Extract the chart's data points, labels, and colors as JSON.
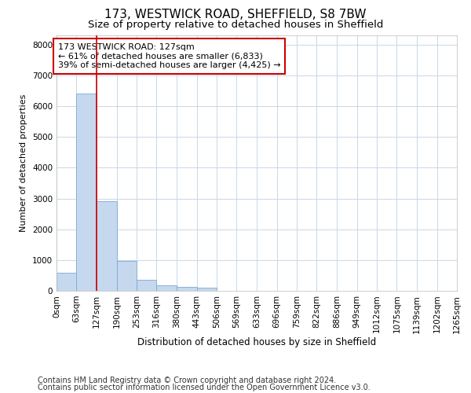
{
  "title_line1": "173, WESTWICK ROAD, SHEFFIELD, S8 7BW",
  "title_line2": "Size of property relative to detached houses in Sheffield",
  "xlabel": "Distribution of detached houses by size in Sheffield",
  "ylabel": "Number of detached properties",
  "annotation_line1": "173 WESTWICK ROAD: 127sqm",
  "annotation_line2": "← 61% of detached houses are smaller (6,833)",
  "annotation_line3": "39% of semi-detached houses are larger (4,425) →",
  "footnote_line1": "Contains HM Land Registry data © Crown copyright and database right 2024.",
  "footnote_line2": "Contains public sector information licensed under the Open Government Licence v3.0.",
  "bin_edges": [
    0,
    63,
    127,
    190,
    253,
    316,
    380,
    443,
    506,
    569,
    633,
    696,
    759,
    822,
    886,
    949,
    1012,
    1075,
    1139,
    1202,
    1265
  ],
  "bar_heights": [
    580,
    6400,
    2920,
    970,
    370,
    190,
    115,
    100,
    0,
    0,
    0,
    0,
    0,
    0,
    0,
    0,
    0,
    0,
    0,
    0
  ],
  "bar_color": "#c5d8ee",
  "bar_edge_color": "#7aaad4",
  "red_line_x": 127,
  "annotation_box_color": "#cc0000",
  "background_color": "#ffffff",
  "grid_color": "#c8d8e8",
  "ylim": [
    0,
    8300
  ],
  "yticks": [
    0,
    1000,
    2000,
    3000,
    4000,
    5000,
    6000,
    7000,
    8000
  ],
  "title_fontsize": 11,
  "subtitle_fontsize": 9.5,
  "tick_label_fontsize": 7.5,
  "ylabel_fontsize": 8,
  "xlabel_fontsize": 8.5,
  "annotation_fontsize": 8,
  "footnote_fontsize": 7
}
